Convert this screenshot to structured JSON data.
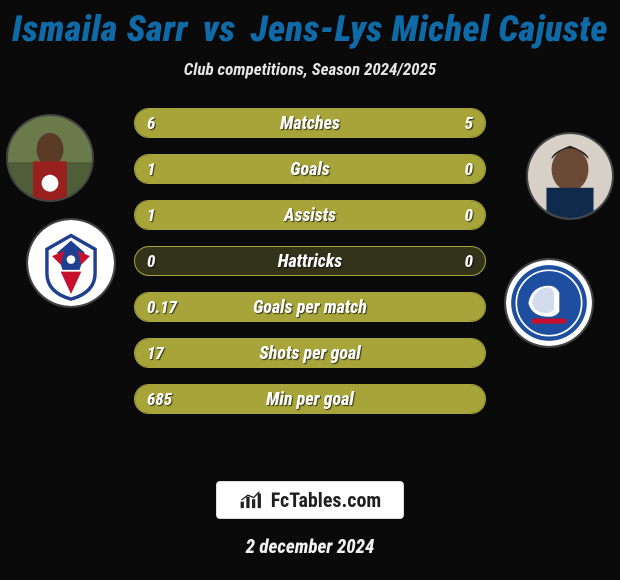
{
  "title_color": "#0f6aa8",
  "player1": "Ismaila Sarr",
  "vs": "vs",
  "player2": "Jens-Lys Michel Cajuste",
  "subtitle": "Club competitions, Season 2024/2025",
  "stats": {
    "bar_fill_color": "#a7a53a",
    "bar_border_color": "#a7a53a",
    "bar_empty_color": "#33331a",
    "label_fontsize": 18,
    "value_fontsize": 17,
    "rows": [
      {
        "label": "Matches",
        "left": "6",
        "right": "5",
        "left_pct": 55,
        "right_pct": 45
      },
      {
        "label": "Goals",
        "left": "1",
        "right": "0",
        "left_pct": 100,
        "right_pct": 0
      },
      {
        "label": "Assists",
        "left": "1",
        "right": "0",
        "left_pct": 100,
        "right_pct": 0
      },
      {
        "label": "Hattricks",
        "left": "0",
        "right": "0",
        "left_pct": 0,
        "right_pct": 0
      },
      {
        "label": "Goals per match",
        "left": "0.17",
        "right": "",
        "left_pct": 100,
        "right_pct": 0
      },
      {
        "label": "Shots per goal",
        "left": "17",
        "right": "",
        "left_pct": 100,
        "right_pct": 0
      },
      {
        "label": "Min per goal",
        "left": "685",
        "right": "",
        "left_pct": 100,
        "right_pct": 0
      }
    ]
  },
  "team1_crest": {
    "bg": "#ffffff",
    "primary": "#1f3f8f",
    "secondary": "#c8102e"
  },
  "team2_crest": {
    "bg": "#ffffff",
    "primary": "#1d4ea0",
    "secondary": "#c8102e"
  },
  "brand": {
    "icon_name": "bar-chart-icon",
    "text": "FcTables.com"
  },
  "date": "2 december 2024"
}
